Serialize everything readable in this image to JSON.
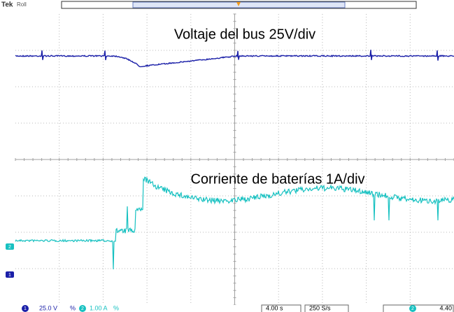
{
  "header": {
    "brand": "Tek",
    "mode": "Roll"
  },
  "annotations": [
    "Voltaje del bus 25V/div",
    "Corriente de baterías 1A/div"
  ],
  "readout": {
    "ch1_scale": "25.0 V",
    "ch1_coupling": "%",
    "ch2_scale": "1.00 A",
    "ch2_coupling": "%",
    "timebase": "4.00 s",
    "sample_rate": "250 S/s",
    "trigger_level": "4.40"
  },
  "markers": {
    "ch1": "1",
    "ch2": "2"
  }
}
